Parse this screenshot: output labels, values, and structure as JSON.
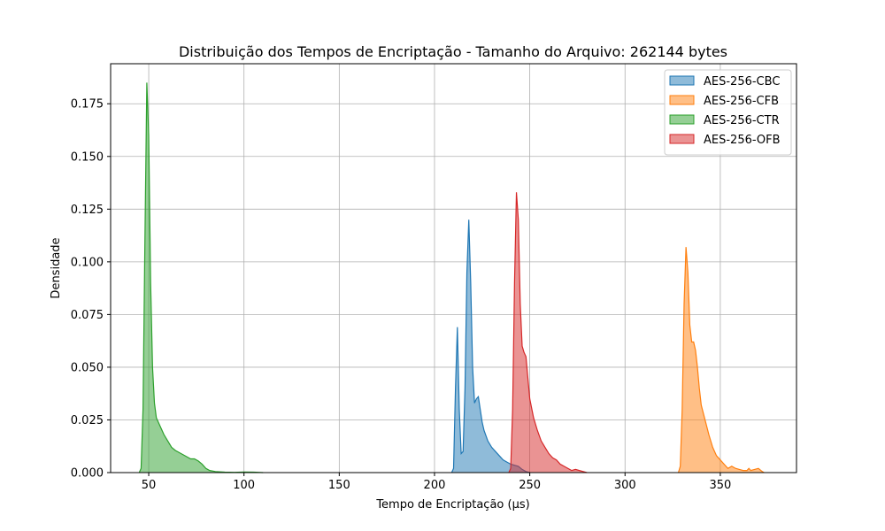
{
  "chart_data": {
    "type": "area",
    "title": "Distribuição dos Tempos de Encriptação - Tamanho do Arquivo: 262144 bytes",
    "xlabel": "Tempo de Encriptação (µs)",
    "ylabel": "Densidade",
    "xlim": [
      30,
      390
    ],
    "ylim": [
      0,
      0.194
    ],
    "xticks": [
      50,
      100,
      150,
      200,
      250,
      300,
      350
    ],
    "xtick_labels": [
      "50",
      "100",
      "150",
      "200",
      "250",
      "300",
      "350"
    ],
    "yticks": [
      0,
      0.025,
      0.05,
      0.075,
      0.1,
      0.125,
      0.15,
      0.175
    ],
    "ytick_labels": [
      "0.000",
      "0.025",
      "0.050",
      "0.075",
      "0.100",
      "0.125",
      "0.150",
      "0.175"
    ],
    "grid": true,
    "legend_position": "top-right",
    "series": [
      {
        "name": "AES-256-CBC",
        "color": "#1f77b4",
        "points": [
          [
            209,
            0
          ],
          [
            210,
            0.002
          ],
          [
            211,
            0.04
          ],
          [
            212,
            0.069
          ],
          [
            213,
            0.03
          ],
          [
            214,
            0.009
          ],
          [
            215,
            0.01
          ],
          [
            216,
            0.04
          ],
          [
            217,
            0.095
          ],
          [
            218,
            0.12
          ],
          [
            219,
            0.09
          ],
          [
            220,
            0.05
          ],
          [
            221,
            0.033
          ],
          [
            222,
            0.035
          ],
          [
            223,
            0.036
          ],
          [
            224,
            0.03
          ],
          [
            225,
            0.024
          ],
          [
            226,
            0.02
          ],
          [
            228,
            0.015
          ],
          [
            230,
            0.012
          ],
          [
            232,
            0.01
          ],
          [
            234,
            0.008
          ],
          [
            236,
            0.006
          ],
          [
            238,
            0.005
          ],
          [
            240,
            0.004
          ],
          [
            242,
            0.0035
          ],
          [
            244,
            0.003
          ],
          [
            246,
            0.0015
          ],
          [
            248,
            0.0005
          ],
          [
            250,
            0
          ]
        ]
      },
      {
        "name": "AES-256-CFB",
        "color": "#ff7f0e",
        "points": [
          [
            328,
            0
          ],
          [
            329,
            0.003
          ],
          [
            330,
            0.03
          ],
          [
            331,
            0.08
          ],
          [
            332,
            0.107
          ],
          [
            333,
            0.095
          ],
          [
            334,
            0.07
          ],
          [
            335,
            0.062
          ],
          [
            336,
            0.062
          ],
          [
            337,
            0.058
          ],
          [
            338,
            0.05
          ],
          [
            339,
            0.04
          ],
          [
            340,
            0.032
          ],
          [
            342,
            0.025
          ],
          [
            344,
            0.018
          ],
          [
            346,
            0.012
          ],
          [
            348,
            0.008
          ],
          [
            350,
            0.006
          ],
          [
            352,
            0.004
          ],
          [
            354,
            0.002
          ],
          [
            356,
            0.003
          ],
          [
            358,
            0.002
          ],
          [
            360,
            0.0015
          ],
          [
            362,
            0.001
          ],
          [
            364,
            0.001
          ],
          [
            365,
            0.002
          ],
          [
            366,
            0.001
          ],
          [
            368,
            0.0015
          ],
          [
            370,
            0.002
          ],
          [
            372,
            0.0005
          ],
          [
            373,
            0
          ]
        ]
      },
      {
        "name": "AES-256-CTR",
        "color": "#2ca02c",
        "points": [
          [
            45,
            0
          ],
          [
            46,
            0.002
          ],
          [
            47,
            0.03
          ],
          [
            48,
            0.11
          ],
          [
            49,
            0.185
          ],
          [
            50,
            0.16
          ],
          [
            51,
            0.09
          ],
          [
            52,
            0.05
          ],
          [
            53,
            0.033
          ],
          [
            54,
            0.026
          ],
          [
            56,
            0.022
          ],
          [
            58,
            0.018
          ],
          [
            60,
            0.015
          ],
          [
            62,
            0.012
          ],
          [
            64,
            0.0105
          ],
          [
            66,
            0.0095
          ],
          [
            68,
            0.0085
          ],
          [
            70,
            0.0075
          ],
          [
            72,
            0.0065
          ],
          [
            74,
            0.0065
          ],
          [
            76,
            0.0055
          ],
          [
            78,
            0.004
          ],
          [
            80,
            0.002
          ],
          [
            82,
            0.001
          ],
          [
            85,
            0.0005
          ],
          [
            90,
            0.0002
          ],
          [
            95,
            0.0001
          ],
          [
            100,
            0.0003
          ],
          [
            105,
            0.0002
          ],
          [
            110,
            0
          ]
        ]
      },
      {
        "name": "AES-256-OFB",
        "color": "#d62728",
        "points": [
          [
            239,
            0
          ],
          [
            240,
            0.002
          ],
          [
            241,
            0.03
          ],
          [
            242,
            0.09
          ],
          [
            243,
            0.133
          ],
          [
            244,
            0.12
          ],
          [
            245,
            0.08
          ],
          [
            246,
            0.06
          ],
          [
            247,
            0.057
          ],
          [
            248,
            0.055
          ],
          [
            249,
            0.045
          ],
          [
            250,
            0.035
          ],
          [
            252,
            0.026
          ],
          [
            254,
            0.02
          ],
          [
            256,
            0.015
          ],
          [
            258,
            0.012
          ],
          [
            260,
            0.009
          ],
          [
            262,
            0.007
          ],
          [
            264,
            0.006
          ],
          [
            266,
            0.004
          ],
          [
            268,
            0.003
          ],
          [
            270,
            0.002
          ],
          [
            272,
            0.001
          ],
          [
            274,
            0.0015
          ],
          [
            276,
            0.001
          ],
          [
            278,
            0.0005
          ],
          [
            280,
            0
          ]
        ]
      }
    ]
  }
}
